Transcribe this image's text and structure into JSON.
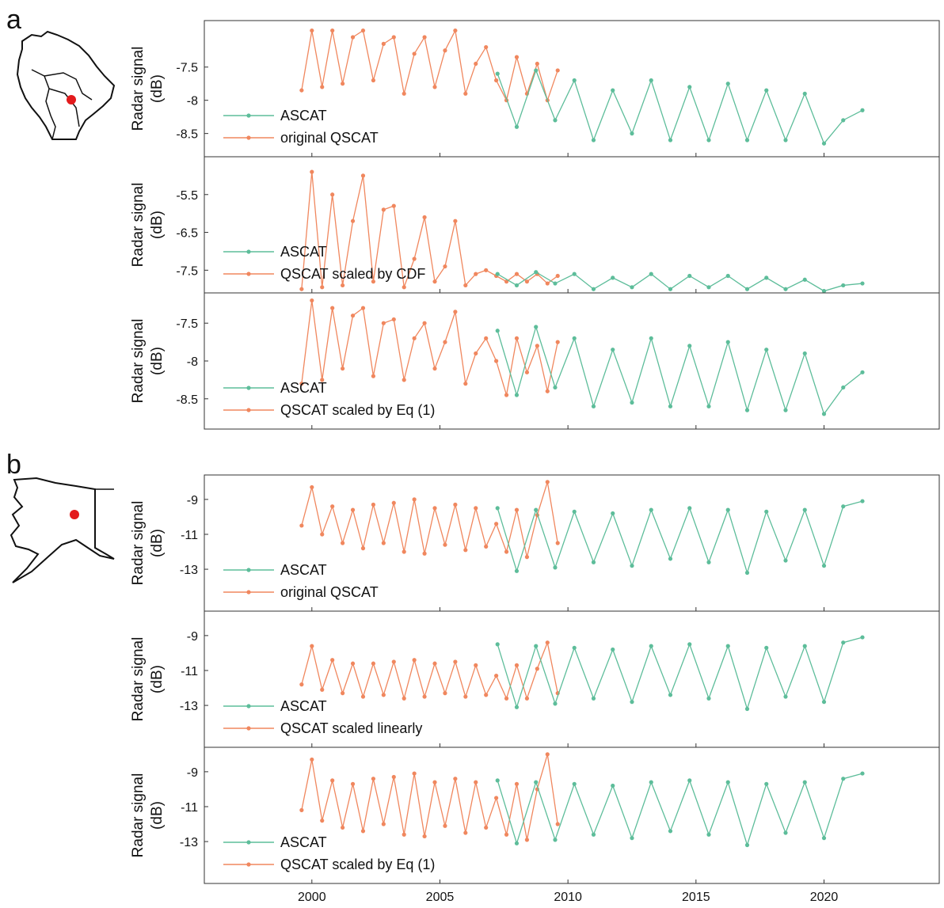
{
  "figure": {
    "panel_labels": [
      "a",
      "b"
    ],
    "y_axis_label_line1": "Radar signal",
    "y_axis_label_line2": "(dB)",
    "x_ticks": [
      2000,
      2005,
      2010,
      2015,
      2020
    ],
    "colors": {
      "ascat": "#5dbd9a",
      "qscat": "#f0875e",
      "marker": "#e31a1c",
      "axes": "#333333"
    }
  },
  "chart_data": [
    {
      "type": "line",
      "panel": "a",
      "row": 1,
      "xlim": [
        1995.8,
        2024.5
      ],
      "ylim": [
        -8.85,
        -6.8
      ],
      "yticks": [
        -7.5,
        -8,
        -8.5
      ],
      "legend": [
        "ASCAT",
        "original QSCAT"
      ],
      "series": [
        {
          "name": "ASCAT",
          "x": [
            2007.25,
            2008.0,
            2008.75,
            2009.5,
            2010.25,
            2011.0,
            2011.75,
            2012.5,
            2013.25,
            2014.0,
            2014.75,
            2015.5,
            2016.25,
            2017.0,
            2017.75,
            2018.5,
            2019.25,
            2020.0,
            2020.75,
            2021.5
          ],
          "y": [
            -7.6,
            -8.4,
            -7.55,
            -8.3,
            -7.7,
            -8.6,
            -7.85,
            -8.5,
            -7.7,
            -8.6,
            -7.8,
            -8.6,
            -7.75,
            -8.6,
            -7.85,
            -8.6,
            -7.9,
            -8.65,
            -8.3,
            -8.15
          ]
        },
        {
          "name": "original QSCAT",
          "x": [
            1999.6,
            2000.0,
            2000.4,
            2000.8,
            2001.2,
            2001.6,
            2002.0,
            2002.4,
            2002.8,
            2003.2,
            2003.6,
            2004.0,
            2004.4,
            2004.8,
            2005.2,
            2005.6,
            2006.0,
            2006.4,
            2006.8,
            2007.2,
            2007.6,
            2008.0,
            2008.4,
            2008.8,
            2009.2,
            2009.6
          ],
          "y": [
            -7.85,
            -6.95,
            -7.8,
            -6.95,
            -7.75,
            -7.05,
            -6.95,
            -7.7,
            -7.15,
            -7.05,
            -7.9,
            -7.3,
            -7.05,
            -7.8,
            -7.25,
            -6.95,
            -7.9,
            -7.45,
            -7.2,
            -7.7,
            -8.0,
            -7.35,
            -7.9,
            -7.45,
            -8.0,
            -7.55
          ]
        }
      ]
    },
    {
      "type": "line",
      "panel": "a",
      "row": 2,
      "xlim": [
        1995.8,
        2024.5
      ],
      "ylim": [
        -8.1,
        -4.5
      ],
      "yticks": [
        -5.5,
        -6.5,
        -7.5
      ],
      "legend": [
        "ASCAT",
        "QSCAT scaled by CDF"
      ],
      "series": [
        {
          "name": "ASCAT",
          "x": [
            2007.25,
            2008.0,
            2008.75,
            2009.5,
            2010.25,
            2011.0,
            2011.75,
            2012.5,
            2013.25,
            2014.0,
            2014.75,
            2015.5,
            2016.25,
            2017.0,
            2017.75,
            2018.5,
            2019.25,
            2020.0,
            2020.75,
            2021.5
          ],
          "y": [
            -7.6,
            -7.9,
            -7.55,
            -7.85,
            -7.6,
            -8.0,
            -7.7,
            -7.95,
            -7.6,
            -8.0,
            -7.65,
            -7.95,
            -7.65,
            -8.0,
            -7.7,
            -8.0,
            -7.75,
            -8.05,
            -7.9,
            -7.85
          ]
        },
        {
          "name": "QSCAT scaled by CDF",
          "x": [
            1999.6,
            2000.0,
            2000.4,
            2000.8,
            2001.2,
            2001.6,
            2002.0,
            2002.4,
            2002.8,
            2003.2,
            2003.6,
            2004.0,
            2004.4,
            2004.8,
            2005.2,
            2005.6,
            2006.0,
            2006.4,
            2006.8,
            2007.2,
            2007.6,
            2008.0,
            2008.4,
            2008.8,
            2009.2,
            2009.6
          ],
          "y": [
            -8.0,
            -4.9,
            -7.95,
            -5.5,
            -7.9,
            -6.2,
            -5.0,
            -7.8,
            -5.9,
            -5.8,
            -7.95,
            -7.2,
            -6.1,
            -7.8,
            -7.4,
            -6.2,
            -7.9,
            -7.6,
            -7.5,
            -7.65,
            -7.8,
            -7.6,
            -7.8,
            -7.6,
            -7.85,
            -7.65
          ]
        }
      ]
    },
    {
      "type": "line",
      "panel": "a",
      "row": 3,
      "xlim": [
        1995.8,
        2024.5
      ],
      "ylim": [
        -8.9,
        -7.1
      ],
      "yticks": [
        -7.5,
        -8,
        -8.5
      ],
      "legend": [
        "ASCAT",
        "QSCAT scaled by Eq (1)"
      ],
      "series": [
        {
          "name": "ASCAT",
          "x": [
            2007.25,
            2008.0,
            2008.75,
            2009.5,
            2010.25,
            2011.0,
            2011.75,
            2012.5,
            2013.25,
            2014.0,
            2014.75,
            2015.5,
            2016.25,
            2017.0,
            2017.75,
            2018.5,
            2019.25,
            2020.0,
            2020.75,
            2021.5
          ],
          "y": [
            -7.6,
            -8.45,
            -7.55,
            -8.35,
            -7.7,
            -8.6,
            -7.85,
            -8.55,
            -7.7,
            -8.6,
            -7.8,
            -8.6,
            -7.75,
            -8.65,
            -7.85,
            -8.65,
            -7.9,
            -8.7,
            -8.35,
            -8.15
          ]
        },
        {
          "name": "QSCAT scaled by Eq (1)",
          "x": [
            1999.6,
            2000.0,
            2000.4,
            2000.8,
            2001.2,
            2001.6,
            2002.0,
            2002.4,
            2002.8,
            2003.2,
            2003.6,
            2004.0,
            2004.4,
            2004.8,
            2005.2,
            2005.6,
            2006.0,
            2006.4,
            2006.8,
            2007.2,
            2007.6,
            2008.0,
            2008.4,
            2008.8,
            2009.2,
            2009.6
          ],
          "y": [
            -8.3,
            -7.2,
            -8.25,
            -7.3,
            -8.1,
            -7.4,
            -7.3,
            -8.2,
            -7.5,
            -7.45,
            -8.25,
            -7.7,
            -7.5,
            -8.1,
            -7.75,
            -7.35,
            -8.3,
            -7.9,
            -7.7,
            -8.0,
            -8.45,
            -7.7,
            -8.15,
            -7.8,
            -8.4,
            -7.75
          ]
        }
      ]
    },
    {
      "type": "line",
      "panel": "b",
      "row": 1,
      "xlim": [
        1995.8,
        2024.5
      ],
      "ylim": [
        -15.4,
        -7.6
      ],
      "yticks": [
        -9,
        -11,
        -13
      ],
      "legend": [
        "ASCAT",
        "original QSCAT"
      ],
      "series": [
        {
          "name": "ASCAT",
          "x": [
            2007.25,
            2008.0,
            2008.75,
            2009.5,
            2010.25,
            2011.0,
            2011.75,
            2012.5,
            2013.25,
            2014.0,
            2014.75,
            2015.5,
            2016.25,
            2017.0,
            2017.75,
            2018.5,
            2019.25,
            2020.0,
            2020.75,
            2021.5
          ],
          "y": [
            -9.5,
            -13.1,
            -9.6,
            -12.9,
            -9.7,
            -12.6,
            -9.8,
            -12.8,
            -9.6,
            -12.4,
            -9.5,
            -12.6,
            -9.6,
            -13.2,
            -9.7,
            -12.5,
            -9.6,
            -12.8,
            -9.4,
            -9.1
          ]
        },
        {
          "name": "original QSCAT",
          "x": [
            1999.6,
            2000.0,
            2000.4,
            2000.8,
            2001.2,
            2001.6,
            2002.0,
            2002.4,
            2002.8,
            2003.2,
            2003.6,
            2004.0,
            2004.4,
            2004.8,
            2005.2,
            2005.6,
            2006.0,
            2006.4,
            2006.8,
            2007.2,
            2007.6,
            2008.0,
            2008.4,
            2008.8,
            2009.2,
            2009.6
          ],
          "y": [
            -10.5,
            -8.3,
            -11.0,
            -9.4,
            -11.5,
            -9.6,
            -11.8,
            -9.3,
            -11.5,
            -9.2,
            -12.0,
            -9.0,
            -12.1,
            -9.5,
            -11.6,
            -9.3,
            -11.9,
            -9.5,
            -11.7,
            -10.4,
            -12.0,
            -9.6,
            -12.3,
            -9.9,
            -8.0,
            -11.5
          ]
        }
      ]
    },
    {
      "type": "line",
      "panel": "b",
      "row": 2,
      "xlim": [
        1995.8,
        2024.5
      ],
      "ylim": [
        -15.4,
        -7.6
      ],
      "yticks": [
        -9,
        -11,
        -13
      ],
      "legend": [
        "ASCAT",
        "QSCAT scaled linearly"
      ],
      "series": [
        {
          "name": "ASCAT",
          "x": [
            2007.25,
            2008.0,
            2008.75,
            2009.5,
            2010.25,
            2011.0,
            2011.75,
            2012.5,
            2013.25,
            2014.0,
            2014.75,
            2015.5,
            2016.25,
            2017.0,
            2017.75,
            2018.5,
            2019.25,
            2020.0,
            2020.75,
            2021.5
          ],
          "y": [
            -9.5,
            -13.1,
            -9.6,
            -12.9,
            -9.7,
            -12.6,
            -9.8,
            -12.8,
            -9.6,
            -12.4,
            -9.5,
            -12.6,
            -9.6,
            -13.2,
            -9.7,
            -12.5,
            -9.6,
            -12.8,
            -9.4,
            -9.1
          ]
        },
        {
          "name": "QSCAT scaled linearly",
          "x": [
            1999.6,
            2000.0,
            2000.4,
            2000.8,
            2001.2,
            2001.6,
            2002.0,
            2002.4,
            2002.8,
            2003.2,
            2003.6,
            2004.0,
            2004.4,
            2004.8,
            2005.2,
            2005.6,
            2006.0,
            2006.4,
            2006.8,
            2007.2,
            2007.6,
            2008.0,
            2008.4,
            2008.8,
            2009.2,
            2009.6
          ],
          "y": [
            -11.8,
            -9.6,
            -12.1,
            -10.4,
            -12.3,
            -10.6,
            -12.5,
            -10.6,
            -12.4,
            -10.5,
            -12.6,
            -10.4,
            -12.5,
            -10.6,
            -12.3,
            -10.5,
            -12.5,
            -10.7,
            -12.4,
            -11.3,
            -12.6,
            -10.7,
            -12.6,
            -10.9,
            -9.4,
            -12.3
          ]
        }
      ]
    },
    {
      "type": "line",
      "panel": "b",
      "row": 3,
      "xlim": [
        1995.8,
        2024.5
      ],
      "ylim": [
        -15.4,
        -7.6
      ],
      "yticks": [
        -9,
        -11,
        -13
      ],
      "legend": [
        "ASCAT",
        "QSCAT scaled by Eq (1)"
      ],
      "series": [
        {
          "name": "ASCAT",
          "x": [
            2007.25,
            2008.0,
            2008.75,
            2009.5,
            2010.25,
            2011.0,
            2011.75,
            2012.5,
            2013.25,
            2014.0,
            2014.75,
            2015.5,
            2016.25,
            2017.0,
            2017.75,
            2018.5,
            2019.25,
            2020.0,
            2020.75,
            2021.5
          ],
          "y": [
            -9.5,
            -13.1,
            -9.6,
            -12.9,
            -9.7,
            -12.6,
            -9.8,
            -12.8,
            -9.6,
            -12.4,
            -9.5,
            -12.6,
            -9.6,
            -13.2,
            -9.7,
            -12.5,
            -9.6,
            -12.8,
            -9.4,
            -9.1
          ]
        },
        {
          "name": "QSCAT scaled by Eq (1)",
          "x": [
            1999.6,
            2000.0,
            2000.4,
            2000.8,
            2001.2,
            2001.6,
            2002.0,
            2002.4,
            2002.8,
            2003.2,
            2003.6,
            2004.0,
            2004.4,
            2004.8,
            2005.2,
            2005.6,
            2006.0,
            2006.4,
            2006.8,
            2007.2,
            2007.6,
            2008.0,
            2008.4,
            2008.8,
            2009.2,
            2009.6
          ],
          "y": [
            -11.2,
            -8.3,
            -11.8,
            -9.5,
            -12.2,
            -9.7,
            -12.4,
            -9.4,
            -12.0,
            -9.3,
            -12.6,
            -9.1,
            -12.7,
            -9.6,
            -12.1,
            -9.4,
            -12.5,
            -9.6,
            -12.2,
            -10.5,
            -12.6,
            -9.7,
            -12.9,
            -10.0,
            -8.0,
            -12.0
          ]
        }
      ]
    }
  ]
}
